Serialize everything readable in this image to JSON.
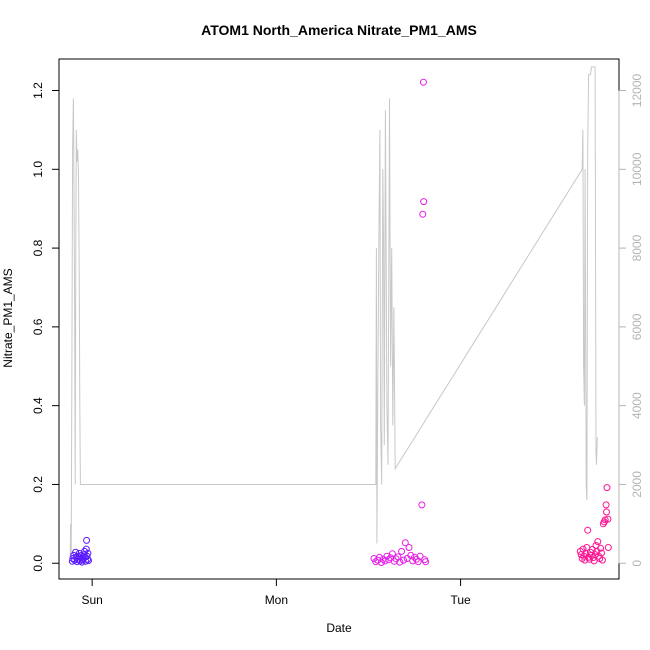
{
  "chart_data": {
    "type": "scatter",
    "title": "ATOM1 North_America Nitrate_PM1_AMS",
    "xlabel": "Date",
    "ylabel": "Nitrate_PM1_AMS",
    "xlim": [
      0.82,
      3.86
    ],
    "ylim": [
      -0.04,
      1.28
    ],
    "y2lim": [
      -400,
      12800
    ],
    "x_ticks": [
      {
        "value": 1.0,
        "label": "Sun"
      },
      {
        "value": 2.0,
        "label": "Mon"
      },
      {
        "value": 3.0,
        "label": "Tue"
      }
    ],
    "y_ticks": [
      0.0,
      0.2,
      0.4,
      0.6,
      0.8,
      1.0,
      1.2
    ],
    "y_tick_labels": [
      "0.0",
      "0.2",
      "0.4",
      "0.6",
      "0.8",
      "1.0",
      "1.2"
    ],
    "y2_ticks": [
      0,
      2000,
      4000,
      6000,
      8000,
      10000,
      12000
    ],
    "y2_tick_labels": [
      "0",
      "2000",
      "4000",
      "6000",
      "8000",
      "10000",
      "12000"
    ],
    "grid": false,
    "colors": {
      "early": "#5a1aff",
      "mid": "#e61ee6",
      "late": "#ff1493",
      "altitude_line": "#c8c8c8",
      "right_axis": "#b4b4b4"
    },
    "series": [
      {
        "type": "scatter",
        "values": [
          [
            0.892,
            0.005
          ],
          [
            0.895,
            0.012
          ],
          [
            0.9,
            0.02
          ],
          [
            0.905,
            0.008
          ],
          [
            0.91,
            0.028
          ],
          [
            0.913,
            0.015
          ],
          [
            0.918,
            0.004
          ],
          [
            0.922,
            0.018
          ],
          [
            0.926,
            0.01
          ],
          [
            0.93,
            0.025
          ],
          [
            0.934,
            0.006
          ],
          [
            0.938,
            0.014
          ],
          [
            0.941,
            0.02
          ],
          [
            0.945,
            0.003
          ],
          [
            0.948,
            0.009
          ],
          [
            0.952,
            0.012
          ],
          [
            0.956,
            0.022
          ],
          [
            0.959,
            0.03
          ],
          [
            0.962,
            0.015
          ],
          [
            0.965,
            0.005
          ],
          [
            0.968,
            0.036
          ],
          [
            0.97,
            0.058
          ],
          [
            0.972,
            0.018
          ],
          [
            0.975,
            0.01
          ],
          [
            0.977,
            0.025
          ],
          [
            0.98,
            0.007
          ],
          [
            2.53,
            0.012
          ],
          [
            2.54,
            0.004
          ],
          [
            2.55,
            0.008
          ],
          [
            2.56,
            0.015
          ],
          [
            2.57,
            0.002
          ],
          [
            2.58,
            0.01
          ],
          [
            2.59,
            0.006
          ],
          [
            2.6,
            0.018
          ],
          [
            2.61,
            0.009
          ],
          [
            2.62,
            0.014
          ],
          [
            2.63,
            0.024
          ],
          [
            2.64,
            0.005
          ],
          [
            2.65,
            0.011
          ],
          [
            2.66,
            0.016
          ],
          [
            2.67,
            0.003
          ],
          [
            2.68,
            0.03
          ],
          [
            2.69,
            0.008
          ],
          [
            2.7,
            0.052
          ],
          [
            2.71,
            0.012
          ],
          [
            2.72,
            0.04
          ],
          [
            2.73,
            0.02
          ],
          [
            2.74,
            0.006
          ],
          [
            2.75,
            0.015
          ],
          [
            2.76,
            0.01
          ],
          [
            2.77,
            0.004
          ],
          [
            2.78,
            0.018
          ],
          [
            2.79,
            0.148
          ],
          [
            2.795,
            0.886
          ],
          [
            2.8,
            0.918
          ],
          [
            2.798,
            1.221
          ],
          [
            2.805,
            0.009
          ],
          [
            2.81,
            0.004
          ],
          [
            3.65,
            0.03
          ],
          [
            3.655,
            0.022
          ],
          [
            3.66,
            0.012
          ],
          [
            3.665,
            0.036
          ],
          [
            3.67,
            0.018
          ],
          [
            3.675,
            0.008
          ],
          [
            3.68,
            0.025
          ],
          [
            3.685,
            0.04
          ],
          [
            3.69,
            0.084
          ],
          [
            3.695,
            0.015
          ],
          [
            3.7,
            0.01
          ],
          [
            3.705,
            0.028
          ],
          [
            3.71,
            0.02
          ],
          [
            3.715,
            0.035
          ],
          [
            3.72,
            0.014
          ],
          [
            3.725,
            0.006
          ],
          [
            3.73,
            0.022
          ],
          [
            3.735,
            0.045
          ],
          [
            3.74,
            0.03
          ],
          [
            3.745,
            0.055
          ],
          [
            3.75,
            0.018
          ],
          [
            3.755,
            0.012
          ],
          [
            3.76,
            0.038
          ],
          [
            3.765,
            0.026
          ],
          [
            3.77,
            0.008
          ],
          [
            3.775,
            0.1
          ],
          [
            3.78,
            0.105
          ],
          [
            3.785,
            0.11
          ],
          [
            3.79,
            0.148
          ],
          [
            3.792,
            0.13
          ],
          [
            3.795,
            0.192
          ],
          [
            3.8,
            0.112
          ],
          [
            3.802,
            0.04
          ]
        ]
      },
      {
        "type": "line",
        "axis": "right",
        "values": [
          [
            0.88,
            0
          ],
          [
            0.883,
            1000
          ],
          [
            0.886,
            200
          ],
          [
            0.89,
            5000
          ],
          [
            0.894,
            10500
          ],
          [
            0.898,
            11800
          ],
          [
            0.902,
            9000
          ],
          [
            0.905,
            6000
          ],
          [
            0.908,
            2000
          ],
          [
            0.911,
            8000
          ],
          [
            0.914,
            11000
          ],
          [
            0.918,
            10200
          ],
          [
            0.922,
            10500
          ],
          [
            0.926,
            9800
          ],
          [
            0.93,
            7000
          ],
          [
            0.933,
            4000
          ],
          [
            0.936,
            2000
          ],
          [
            2.54,
            2000
          ],
          [
            2.543,
            8000
          ],
          [
            2.546,
            500
          ],
          [
            2.55,
            4000
          ],
          [
            2.556,
            8000
          ],
          [
            2.562,
            11000
          ],
          [
            2.566,
            3500
          ],
          [
            2.572,
            2000
          ],
          [
            2.578,
            10000
          ],
          [
            2.582,
            8000
          ],
          [
            2.586,
            3000
          ],
          [
            2.592,
            11500
          ],
          [
            2.6,
            4000
          ],
          [
            2.606,
            2500
          ],
          [
            2.614,
            11800
          ],
          [
            2.62,
            5000
          ],
          [
            2.626,
            8000
          ],
          [
            2.632,
            3500
          ],
          [
            2.638,
            6500
          ],
          [
            2.645,
            2400
          ],
          [
            3.66,
            10000
          ],
          [
            3.664,
            11000
          ],
          [
            3.668,
            5000
          ],
          [
            3.672,
            4000
          ],
          [
            3.676,
            10000
          ],
          [
            3.682,
            2000
          ],
          [
            3.686,
            1600
          ],
          [
            3.69,
            10500
          ],
          [
            3.695,
            12400
          ],
          [
            3.705,
            12400
          ],
          [
            3.71,
            12600
          ],
          [
            3.73,
            12600
          ],
          [
            3.735,
            2800
          ],
          [
            3.738,
            2500
          ],
          [
            3.742,
            3200
          ]
        ]
      }
    ]
  }
}
